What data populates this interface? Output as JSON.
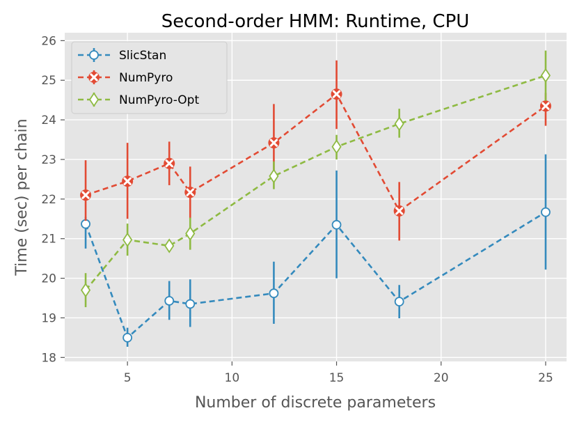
{
  "chart_data": {
    "type": "line",
    "title": "Second-order HMM: Runtime, CPU",
    "xlabel": "Number of discrete parameters",
    "ylabel": "Time (sec) per chain",
    "xlim": [
      2.0,
      26.0
    ],
    "ylim": [
      17.9,
      26.2
    ],
    "xticks": [
      5,
      10,
      15,
      20,
      25
    ],
    "yticks": [
      18,
      19,
      20,
      21,
      22,
      23,
      24,
      25,
      26
    ],
    "grid": true,
    "legend_position": "top-left",
    "x": [
      3,
      5,
      7,
      8,
      12,
      15,
      18,
      25
    ],
    "series": [
      {
        "name": "SlicStan",
        "color": "#348ABD",
        "marker": "circle",
        "y": [
          21.37,
          18.5,
          19.43,
          19.35,
          19.62,
          21.35,
          19.41,
          21.67
        ],
        "err_low": [
          20.75,
          18.27,
          18.95,
          18.77,
          18.85,
          20.0,
          18.99,
          20.22
        ],
        "err_high": [
          21.55,
          18.75,
          19.93,
          19.97,
          20.42,
          22.72,
          19.83,
          23.13
        ]
      },
      {
        "name": "NumPyro",
        "color": "#E24A33",
        "marker": "x-circle",
        "y": [
          22.1,
          22.45,
          22.9,
          22.17,
          23.42,
          24.65,
          21.7,
          24.35
        ],
        "err_low": [
          21.45,
          21.5,
          22.35,
          21.5,
          22.45,
          23.77,
          20.95,
          23.85
        ],
        "err_high": [
          22.98,
          23.42,
          23.45,
          22.82,
          24.4,
          25.5,
          22.43,
          24.68
        ]
      },
      {
        "name": "NumPyro-Opt",
        "color": "#8EBA42",
        "marker": "diamond",
        "y": [
          19.7,
          20.97,
          20.82,
          21.13,
          22.58,
          23.32,
          23.9,
          25.12
        ],
        "err_low": [
          19.27,
          20.57,
          20.67,
          20.72,
          22.25,
          23.0,
          23.55,
          24.48
        ],
        "err_high": [
          20.13,
          21.38,
          20.98,
          21.53,
          22.95,
          23.62,
          24.28,
          25.75
        ]
      }
    ]
  }
}
